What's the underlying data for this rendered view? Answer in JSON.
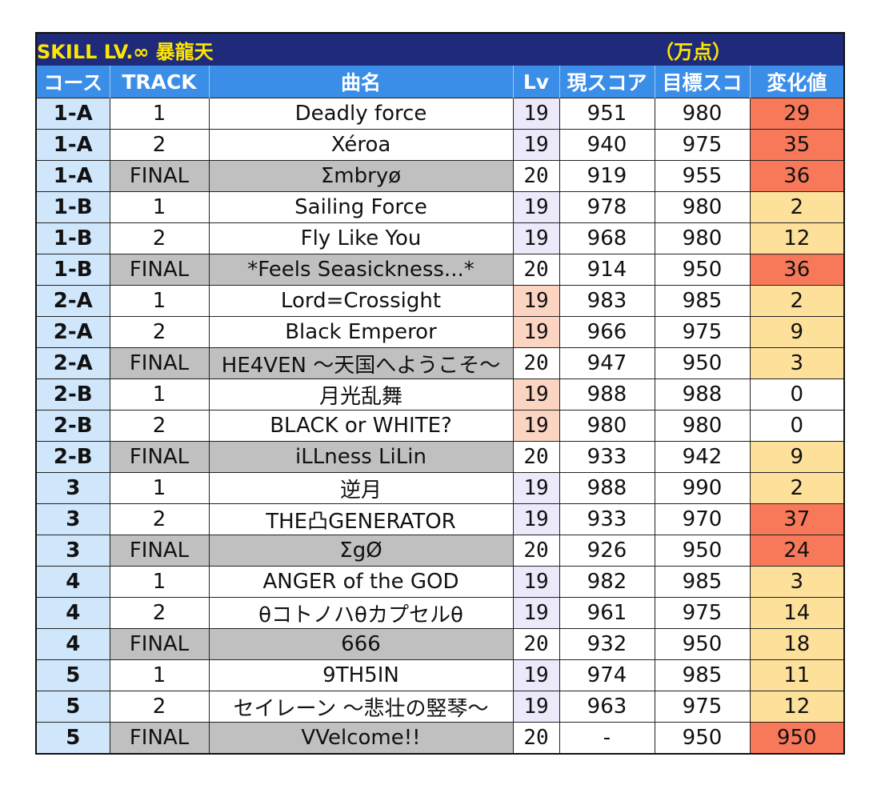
{
  "title": "SKILL LV.∞ 暴龍天",
  "unit": "（万点）",
  "headers": [
    "コース",
    "TRACK",
    "曲名",
    "Lv",
    "現スコア",
    "目標スコ",
    "変化値"
  ],
  "colors": {
    "title_bg": "#1f2b7a",
    "title_text": "#ffe600",
    "header_bg": "#3b8ee8",
    "course_bg": "#cfe6fb",
    "final_bg": "#c0c0c0",
    "lv19_bg": "#ece9fa",
    "lv19_highlight": "#fbd5c2",
    "diff_high": "#f8795a",
    "diff_mid": "#fde09a",
    "diff_zero": "#ffffff"
  },
  "rows": [
    {
      "course": "1-A",
      "track": "1",
      "song": "Deadly force",
      "lv": "19",
      "current": "951",
      "target": "980",
      "diff": "29",
      "lv_hl": false,
      "level": "high"
    },
    {
      "course": "1-A",
      "track": "2",
      "song": "Xéroa",
      "lv": "19",
      "current": "940",
      "target": "975",
      "diff": "35",
      "lv_hl": false,
      "level": "high"
    },
    {
      "course": "1-A",
      "track": "FINAL",
      "song": "Σmbryø",
      "lv": "20",
      "current": "919",
      "target": "955",
      "diff": "36",
      "lv_hl": false,
      "level": "high"
    },
    {
      "course": "1-B",
      "track": "1",
      "song": "Sailing Force",
      "lv": "19",
      "current": "978",
      "target": "980",
      "diff": "2",
      "lv_hl": false,
      "level": "mid"
    },
    {
      "course": "1-B",
      "track": "2",
      "song": "Fly Like You",
      "lv": "19",
      "current": "968",
      "target": "980",
      "diff": "12",
      "lv_hl": false,
      "level": "mid"
    },
    {
      "course": "1-B",
      "track": "FINAL",
      "song": "*Feels Seasickness...*",
      "lv": "20",
      "current": "914",
      "target": "950",
      "diff": "36",
      "lv_hl": false,
      "level": "high"
    },
    {
      "course": "2-A",
      "track": "1",
      "song": "Lord=Crossight",
      "lv": "19",
      "current": "983",
      "target": "985",
      "diff": "2",
      "lv_hl": true,
      "level": "mid"
    },
    {
      "course": "2-A",
      "track": "2",
      "song": "Black Emperor",
      "lv": "19",
      "current": "966",
      "target": "975",
      "diff": "9",
      "lv_hl": true,
      "level": "mid"
    },
    {
      "course": "2-A",
      "track": "FINAL",
      "song": "HE4VEN ～天国へようこそ～",
      "lv": "20",
      "current": "947",
      "target": "950",
      "diff": "3",
      "lv_hl": false,
      "level": "mid"
    },
    {
      "course": "2-B",
      "track": "1",
      "song": "月光乱舞",
      "lv": "19",
      "current": "988",
      "target": "988",
      "diff": "0",
      "lv_hl": true,
      "level": "zero"
    },
    {
      "course": "2-B",
      "track": "2",
      "song": "BLACK or WHITE?",
      "lv": "19",
      "current": "980",
      "target": "980",
      "diff": "0",
      "lv_hl": true,
      "level": "zero"
    },
    {
      "course": "2-B",
      "track": "FINAL",
      "song": "iLLness LiLin",
      "lv": "20",
      "current": "933",
      "target": "942",
      "diff": "9",
      "lv_hl": false,
      "level": "mid"
    },
    {
      "course": "3",
      "track": "1",
      "song": "逆月",
      "lv": "19",
      "current": "988",
      "target": "990",
      "diff": "2",
      "lv_hl": false,
      "level": "mid"
    },
    {
      "course": "3",
      "track": "2",
      "song": "THE凸GENERATOR",
      "lv": "19",
      "current": "933",
      "target": "970",
      "diff": "37",
      "lv_hl": false,
      "level": "high"
    },
    {
      "course": "3",
      "track": "FINAL",
      "song": "ΣgØ",
      "lv": "20",
      "current": "926",
      "target": "950",
      "diff": "24",
      "lv_hl": false,
      "level": "high"
    },
    {
      "course": "4",
      "track": "1",
      "song": "ANGER of the GOD",
      "lv": "19",
      "current": "982",
      "target": "985",
      "diff": "3",
      "lv_hl": false,
      "level": "mid"
    },
    {
      "course": "4",
      "track": "2",
      "song": "θコトノハθカプセルθ",
      "lv": "19",
      "current": "961",
      "target": "975",
      "diff": "14",
      "lv_hl": false,
      "level": "mid"
    },
    {
      "course": "4",
      "track": "FINAL",
      "song": "666",
      "lv": "20",
      "current": "932",
      "target": "950",
      "diff": "18",
      "lv_hl": false,
      "level": "mid"
    },
    {
      "course": "5",
      "track": "1",
      "song": "9TH5IN",
      "lv": "19",
      "current": "974",
      "target": "985",
      "diff": "11",
      "lv_hl": false,
      "level": "mid"
    },
    {
      "course": "5",
      "track": "2",
      "song": "セイレーン ～悲壮の竪琴～",
      "lv": "19",
      "current": "963",
      "target": "975",
      "diff": "12",
      "lv_hl": false,
      "level": "mid"
    },
    {
      "course": "5",
      "track": "FINAL",
      "song": "VVelcome!!",
      "lv": "20",
      "current": "-",
      "target": "950",
      "diff": "950",
      "lv_hl": false,
      "level": "high"
    }
  ]
}
